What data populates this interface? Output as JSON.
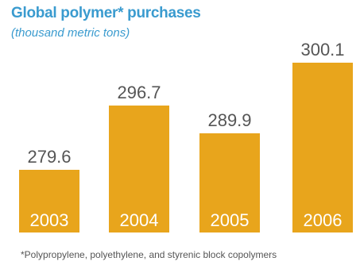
{
  "colors": {
    "bar": "#e8a51c",
    "title": "#3a9bcf",
    "value_label": "#555555",
    "year_label": "#ffffff"
  },
  "chart_data": {
    "type": "bar",
    "title": "Global polymer* purchases",
    "subtitle": "(thousand metric tons)",
    "categories": [
      "2003",
      "2004",
      "2005",
      "2006"
    ],
    "values": [
      279.6,
      296.7,
      289.9,
      300.1
    ],
    "xlabel": "",
    "ylabel": "",
    "grid": false,
    "legend": "none",
    "footnote": "*Polypropylene, polyethylene, and styrenic block copolymers"
  }
}
